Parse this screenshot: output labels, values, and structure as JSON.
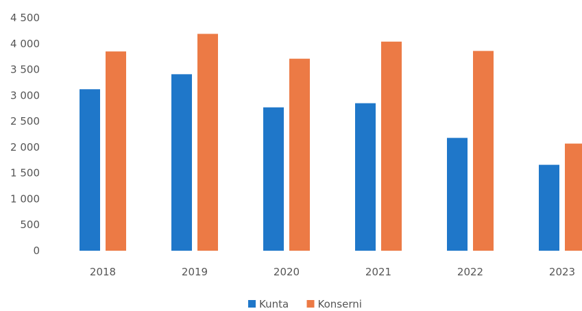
{
  "chart_data": {
    "type": "bar",
    "categories": [
      "2018",
      "2019",
      "2020",
      "2021",
      "2022",
      "2023"
    ],
    "series": [
      {
        "name": "Kunta",
        "color": "#1f77c9",
        "values": [
          3120,
          3410,
          2770,
          2850,
          2180,
          1660
        ]
      },
      {
        "name": "Konserni",
        "color": "#ec7a45",
        "values": [
          3850,
          4190,
          3710,
          4040,
          3860,
          2070
        ]
      }
    ],
    "yticks": [
      "0",
      "500",
      "1 000",
      "1 500",
      "2 000",
      "2 500",
      "3 000",
      "3 500",
      "4 000",
      "4 500"
    ],
    "ylim": [
      0,
      4500
    ],
    "title": "",
    "xlabel": "",
    "ylabel": "",
    "grid": false,
    "legend_position": "bottom"
  }
}
